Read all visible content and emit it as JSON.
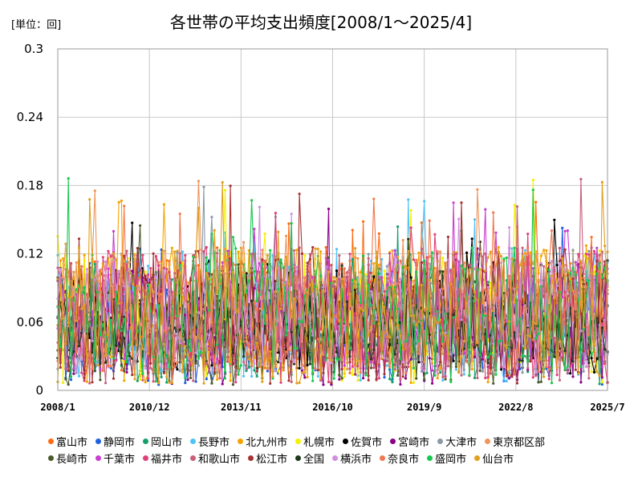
{
  "header": {
    "unit": "[単位：回]",
    "title": "各世帯の平均支出頻度[2008/1～2025/4]"
  },
  "chart_data": {
    "type": "line",
    "ylim": [
      0,
      0.3
    ],
    "yticks": [
      "0",
      "0.06",
      "0.12",
      "0.18",
      "0.24",
      "0.3"
    ],
    "ytick_values": [
      0,
      0.06,
      0.12,
      0.18,
      0.24,
      0.3
    ],
    "xticks": [
      "2008/1",
      "2010/12",
      "2013/11",
      "2016/10",
      "2019/9",
      "2022/8",
      "2025/7"
    ],
    "xlim": [
      "2008/1",
      "2025/7"
    ],
    "n_months": 208,
    "grid": true,
    "legend_position": "bottom",
    "series": [
      {
        "name": "富山市",
        "color": "#ff6a13",
        "base": 0.06,
        "amp": 0.05,
        "seed": 1
      },
      {
        "name": "静岡市",
        "color": "#1f5fe0",
        "base": 0.04,
        "amp": 0.04,
        "seed": 2
      },
      {
        "name": "岡山市",
        "color": "#13a06b",
        "base": 0.05,
        "amp": 0.05,
        "seed": 3
      },
      {
        "name": "長野市",
        "color": "#4fc3f7",
        "base": 0.06,
        "amp": 0.06,
        "seed": 4
      },
      {
        "name": "北九州市",
        "color": "#f5a300",
        "base": 0.06,
        "amp": 0.06,
        "seed": 5
      },
      {
        "name": "札幌市",
        "color": "#f4f000",
        "base": 0.06,
        "amp": 0.06,
        "seed": 6
      },
      {
        "name": "佐賀市",
        "color": "#000000",
        "base": 0.06,
        "amp": 0.05,
        "seed": 7
      },
      {
        "name": "宮崎市",
        "color": "#8a008a",
        "base": 0.05,
        "amp": 0.05,
        "seed": 8
      },
      {
        "name": "大津市",
        "color": "#8c9aa6",
        "base": 0.06,
        "amp": 0.05,
        "seed": 9
      },
      {
        "name": "東京都区部",
        "color": "#f0955a",
        "base": 0.07,
        "amp": 0.05,
        "seed": 10
      },
      {
        "name": "長崎市",
        "color": "#4b5a2a",
        "base": 0.05,
        "amp": 0.05,
        "seed": 11
      },
      {
        "name": "千葉市",
        "color": "#c83fd1",
        "base": 0.06,
        "amp": 0.05,
        "seed": 12
      },
      {
        "name": "福井市",
        "color": "#e0407a",
        "base": 0.06,
        "amp": 0.06,
        "seed": 13
      },
      {
        "name": "和歌山市",
        "color": "#c8607a",
        "base": 0.06,
        "amp": 0.06,
        "seed": 14
      },
      {
        "name": "松江市",
        "color": "#a83232",
        "base": 0.06,
        "amp": 0.06,
        "seed": 15
      },
      {
        "name": "全国",
        "color": "#1e3a1e",
        "base": 0.05,
        "amp": 0.03,
        "seed": 16
      },
      {
        "name": "横浜市",
        "color": "#d090e0",
        "base": 0.06,
        "amp": 0.05,
        "seed": 17
      },
      {
        "name": "奈良市",
        "color": "#f07850",
        "base": 0.06,
        "amp": 0.05,
        "seed": 18
      },
      {
        "name": "盛岡市",
        "color": "#18c850",
        "base": 0.06,
        "amp": 0.06,
        "seed": 19
      },
      {
        "name": "仙台市",
        "color": "#e0a020",
        "base": 0.06,
        "amp": 0.06,
        "seed": 20
      }
    ]
  }
}
